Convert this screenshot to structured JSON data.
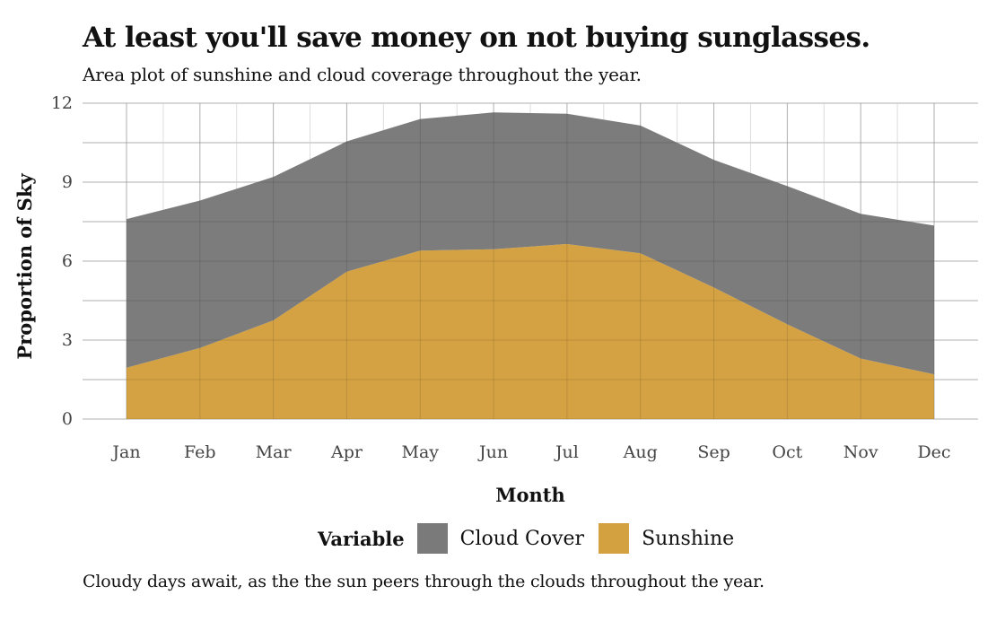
{
  "title": "At least you'll save money on not buying sunglasses.",
  "subtitle": "Area plot of sunshine and cloud coverage throughout the year.",
  "caption": "Cloudy days await, as the the sun peers through the clouds throughout the year.",
  "legend": {
    "title": "Variable",
    "items": [
      {
        "label": "Cloud Cover",
        "color": "#7a7a7a"
      },
      {
        "label": "Sunshine",
        "color": "#d4a141"
      }
    ]
  },
  "chart_data": {
    "type": "area",
    "stacked": true,
    "xlabel": "Month",
    "ylabel": "Proportion of Sky",
    "categories": [
      "Jan",
      "Feb",
      "Mar",
      "Apr",
      "May",
      "Jun",
      "Jul",
      "Aug",
      "Sep",
      "Oct",
      "Nov",
      "Dec"
    ],
    "ylim": [
      0,
      12
    ],
    "yticks": [
      0,
      3,
      6,
      9,
      12
    ],
    "grid": true,
    "legend_position": "bottom",
    "series": [
      {
        "name": "Sunshine",
        "color": "#d4a141",
        "values": [
          1.95,
          2.7,
          3.75,
          5.6,
          6.4,
          6.45,
          6.65,
          6.3,
          5.0,
          3.6,
          2.3,
          1.7
        ]
      },
      {
        "name": "Cloud Cover",
        "color": "#7a7a7a",
        "values": [
          5.65,
          5.6,
          5.45,
          4.95,
          5.0,
          5.2,
          4.95,
          4.85,
          4.85,
          5.25,
          5.5,
          5.65
        ]
      }
    ]
  }
}
